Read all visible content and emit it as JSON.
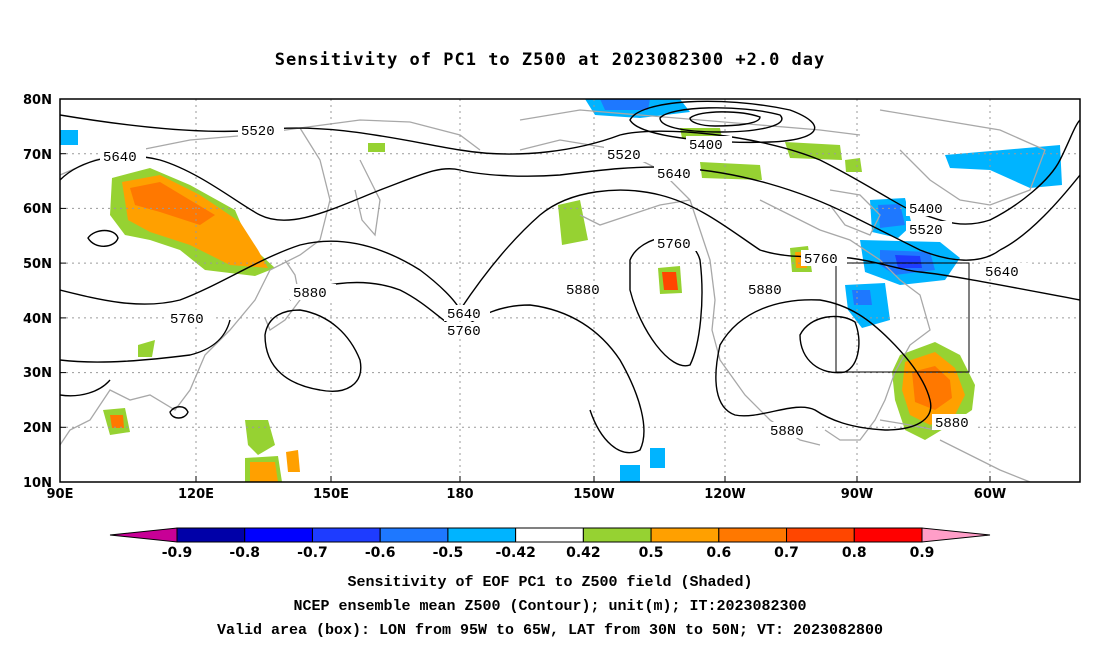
{
  "title": "Sensitivity of PC1 to Z500 at 2023082300 +2.0 day",
  "lat_labels": [
    "80N",
    "70N",
    "60N",
    "50N",
    "40N",
    "30N",
    "20N",
    "10N"
  ],
  "lon_labels": [
    "90E",
    "120E",
    "150E",
    "180",
    "150W",
    "120W",
    "90W",
    "60W"
  ],
  "contour_labels": {
    "c5520_a": "5520",
    "c5640_a": "5640",
    "c5520_b": "5520",
    "c5400_a": "5400",
    "c5640_b": "5640",
    "c5400_b": "5400",
    "c5520_c": "5520",
    "c5640_c": "5640",
    "c5760_a": "5760",
    "c5760_b": "5760",
    "c5880_a": "5880",
    "c5760_c": "5760",
    "c5640_d": "5640",
    "c5760_d": "5760",
    "c5880_b": "5880",
    "c5880_c": "5880",
    "c5880_d": "5880",
    "c5880_e": "5880"
  },
  "colorbar": {
    "labels": [
      "-0.9",
      "-0.8",
      "-0.7",
      "-0.6",
      "-0.5",
      "-0.42",
      "0.42",
      "0.5",
      "0.6",
      "0.7",
      "0.8",
      "0.9"
    ],
    "colors": [
      "#0000a8",
      "#0000ff",
      "#1e3cff",
      "#1e78ff",
      "#00b4ff",
      "#ffffff",
      "#96d232",
      "#ffa000",
      "#ff7800",
      "#ff4600",
      "#ff0000"
    ],
    "low_extend_color": "#c80096",
    "high_extend_color": "#ff9ec8"
  },
  "captions": {
    "line1": "Sensitivity of EOF PC1 to Z500 field (Shaded)",
    "line2": "NCEP ensemble mean Z500 (Contour); unit(m); IT:2023082300",
    "line3": "Valid area (box): LON from 95W to 65W, LAT from 30N to 50N; VT: 2023082800"
  },
  "valid_box": {
    "lon_min": "95W",
    "lon_max": "65W",
    "lat_min": "30N",
    "lat_max": "50N"
  }
}
